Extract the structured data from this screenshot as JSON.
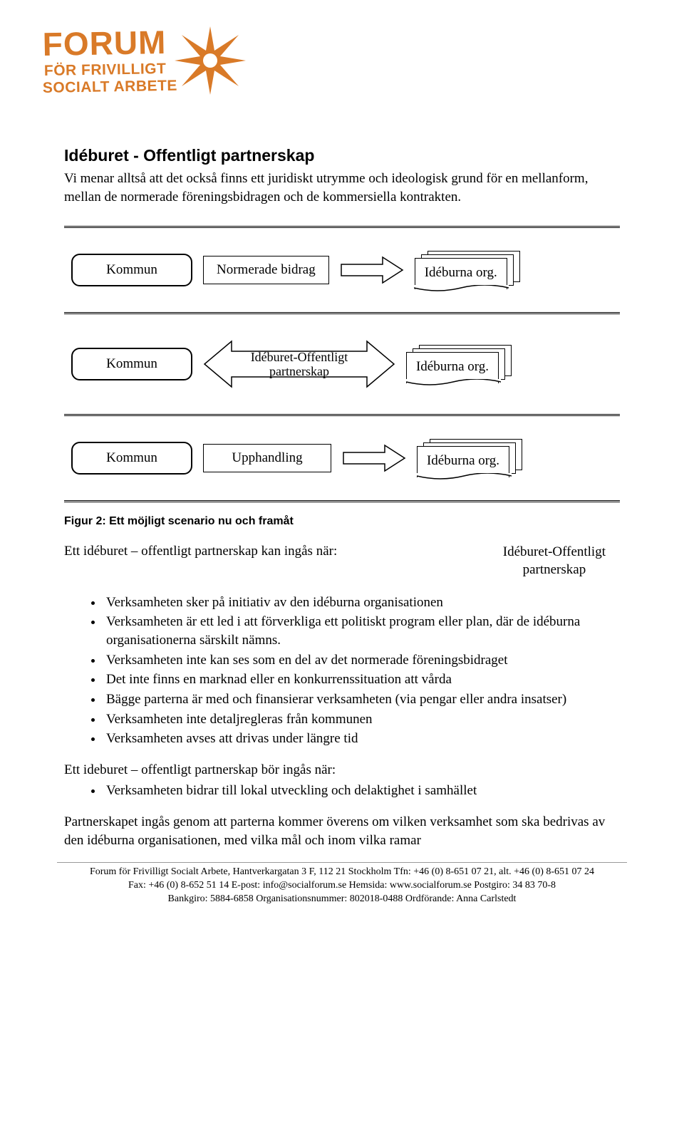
{
  "logo": {
    "line1": "FORUM",
    "line2": "FÖR FRIVILLIGT",
    "line3": "SOCIALT ARBETE",
    "color": "#d97a28"
  },
  "section_title": "Idéburet - Offentligt partnerskap",
  "intro": "Vi menar alltså att det också finns ett juridiskt utrymme och ideologisk grund för en mellanform, mellan de normerade föreningsbidragen och de kommersiella kontrakten.",
  "diagram": {
    "row1": {
      "left": "Kommun",
      "middle": "Normerade bidrag",
      "right": "Idéburna org."
    },
    "row2": {
      "left": "Kommun",
      "middle_l1": "Idéburet-Offentligt",
      "middle_l2": "partnerskap",
      "right": "Idéburna org."
    },
    "row3": {
      "left": "Kommun",
      "middle": "Upphandling",
      "right": "Idéburna org."
    }
  },
  "fig_caption": "Figur 2: Ett möjligt scenario nu och framåt",
  "kan_text": "Ett idéburet – offentligt partnerskap kan ingås när:",
  "float_l1": "Idéburet-Offentligt",
  "float_l2": "partnerskap",
  "bullets_kan": [
    "Verksamheten sker på initiativ av den idéburna organisationen",
    "Verksamheten är ett led i att förverkliga ett politiskt program eller plan, där de idéburna organisationerna särskilt nämns.",
    "Verksamheten inte kan ses som en del av det normerade föreningsbidraget",
    "Det inte finns en marknad eller en konkurrenssituation att vårda",
    "Bägge parterna är med och finansierar verksamheten (via pengar eller andra insatser)",
    "Verksamheten inte detaljregleras från kommunen",
    "Verksamheten avses att drivas under längre tid"
  ],
  "bor_text": "Ett ideburet – offentligt partnerskap bör ingås när:",
  "bullets_bor": [
    "Verksamheten bidrar till lokal utveckling och delaktighet i samhället"
  ],
  "closing": "Partnerskapet ingås genom att parterna kommer överens om vilken verksamhet som ska bedrivas av den idéburna organisationen, med vilka mål och inom vilka ramar",
  "footer": {
    "l1": "Forum för Frivilligt Socialt Arbete, Hantverkargatan 3 F, 112 21 Stockholm  Tfn: +46 (0) 8-651 07 21,  alt.  +46 (0) 8-651 07 24",
    "l2": "Fax: +46 (0) 8-652 51 14  E-post: info@socialforum.se  Hemsida: www.socialforum.se  Postgiro: 34 83 70-8",
    "l3": "Bankgiro: 5884-6858  Organisationsnummer: 802018-0488  Ordförande: Anna Carlstedt"
  }
}
